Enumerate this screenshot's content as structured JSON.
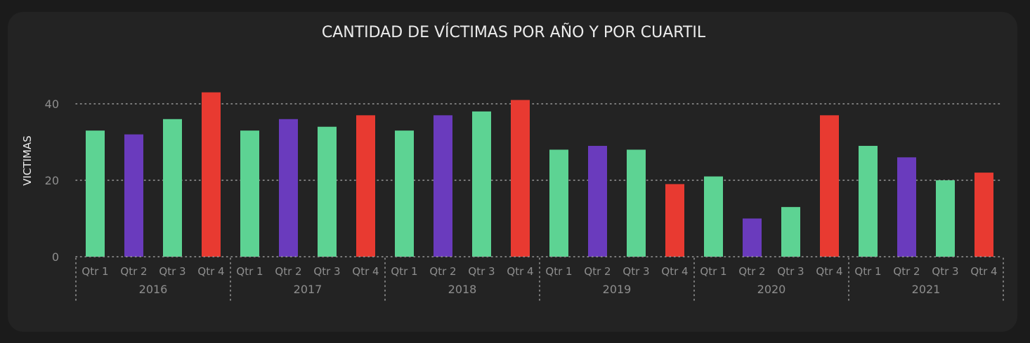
{
  "chart_data": {
    "type": "bar",
    "title": "CANTIDAD DE VÍCTIMAS POR AÑO Y POR CUARTIL",
    "xlabel": "",
    "ylabel": "VICTIMAS",
    "ylim": [
      0,
      50
    ],
    "yticks": [
      0,
      20,
      40
    ],
    "grid": true,
    "legend": "none",
    "groups": [
      {
        "year": "2016",
        "quarters": [
          "Qtr 1",
          "Qtr 2",
          "Qtr 3",
          "Qtr 4"
        ],
        "values": [
          33,
          32,
          36,
          43
        ]
      },
      {
        "year": "2017",
        "quarters": [
          "Qtr 1",
          "Qtr 2",
          "Qtr 3",
          "Qtr 4"
        ],
        "values": [
          33,
          36,
          34,
          37
        ]
      },
      {
        "year": "2018",
        "quarters": [
          "Qtr 1",
          "Qtr 2",
          "Qtr 3",
          "Qtr 4"
        ],
        "values": [
          33,
          37,
          38,
          41
        ]
      },
      {
        "year": "2019",
        "quarters": [
          "Qtr 1",
          "Qtr 2",
          "Qtr 3",
          "Qtr 4"
        ],
        "values": [
          28,
          29,
          28,
          19
        ]
      },
      {
        "year": "2020",
        "quarters": [
          "Qtr 1",
          "Qtr 2",
          "Qtr 3",
          "Qtr 4"
        ],
        "values": [
          21,
          10,
          13,
          37
        ]
      },
      {
        "year": "2021",
        "quarters": [
          "Qtr 1",
          "Qtr 2",
          "Qtr 3",
          "Qtr 4"
        ],
        "values": [
          29,
          26,
          20,
          22
        ]
      }
    ],
    "quarter_colors": [
      "#5dd393",
      "#6a3bbd",
      "#5dd393",
      "#e83a31"
    ]
  }
}
